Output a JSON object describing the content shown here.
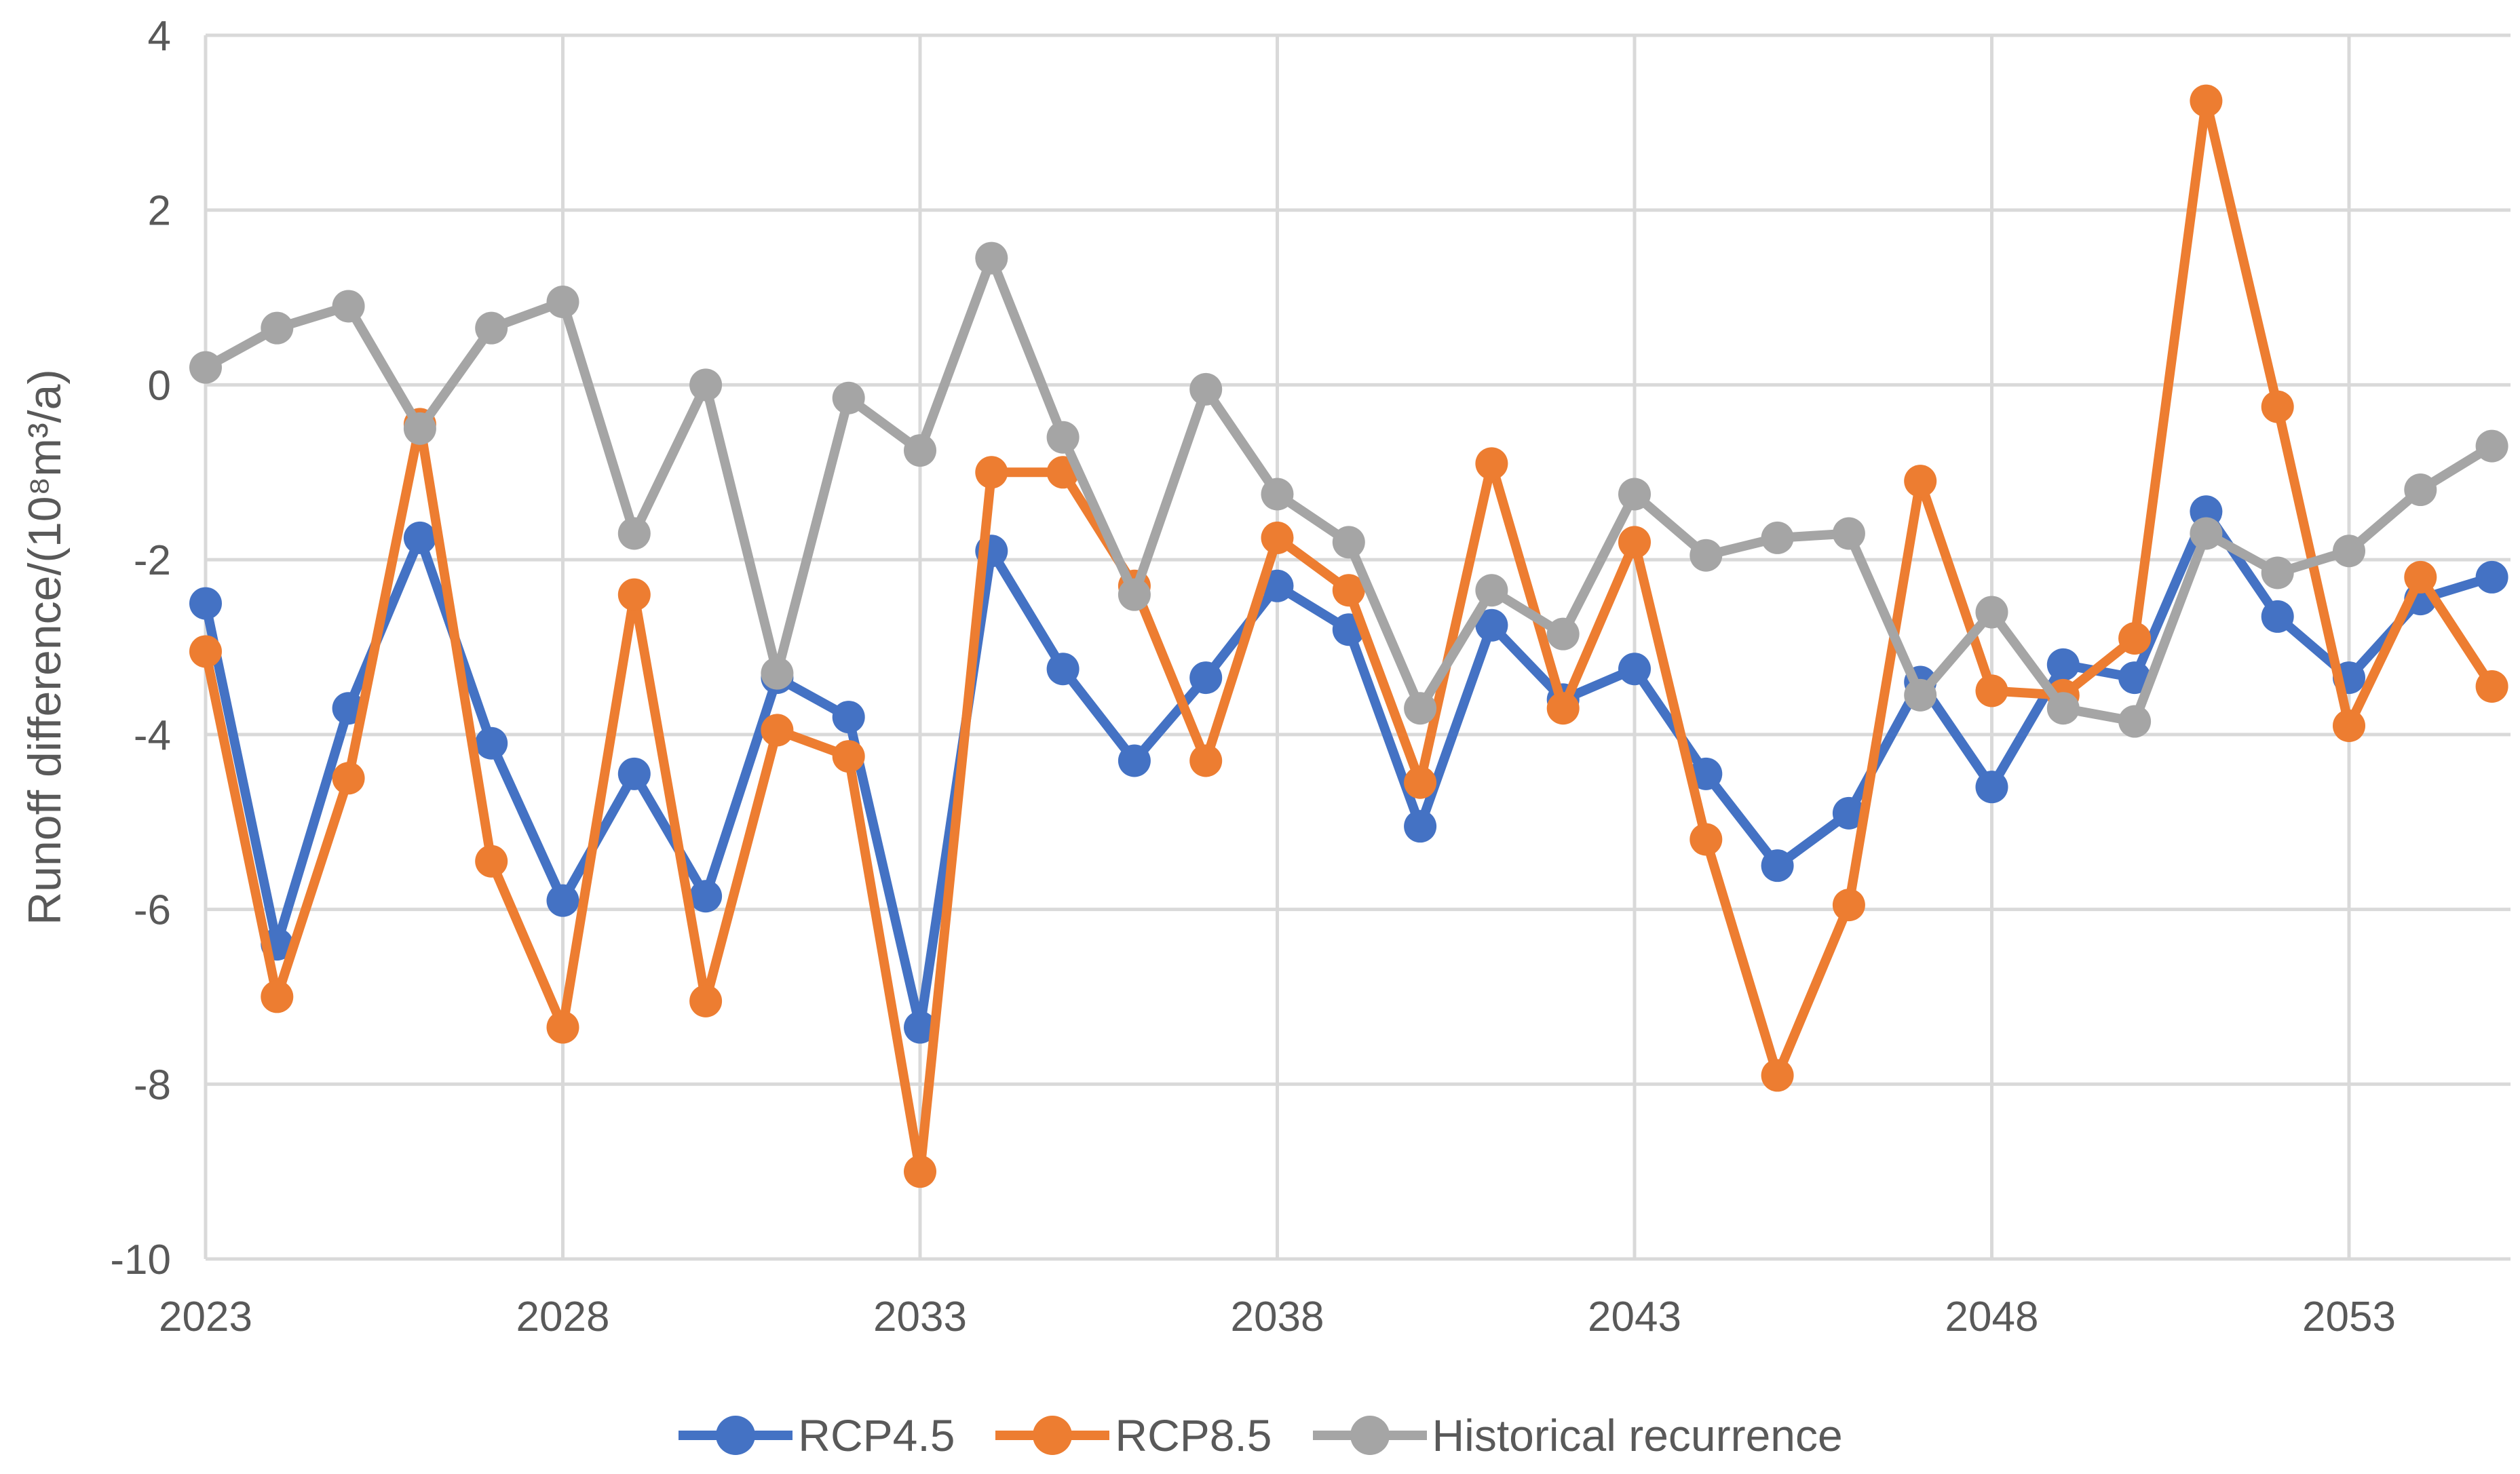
{
  "chart_data": {
    "type": "line",
    "title": "",
    "xlabel": "",
    "ylabel": "Runoff difference/(10⁸m³/a)",
    "x": [
      2023,
      2024,
      2025,
      2026,
      2027,
      2028,
      2029,
      2030,
      2031,
      2032,
      2033,
      2034,
      2035,
      2036,
      2037,
      2038,
      2039,
      2040,
      2041,
      2042,
      2043,
      2044,
      2045,
      2046,
      2047,
      2048,
      2049,
      2050,
      2051,
      2052,
      2053,
      2054,
      2055
    ],
    "x_tick_labels": [
      "2023",
      "2028",
      "2033",
      "2038",
      "2043",
      "2048",
      "2053"
    ],
    "x_tick_years": [
      2023,
      2028,
      2033,
      2038,
      2043,
      2048,
      2053
    ],
    "y_ticks": [
      4,
      2,
      0,
      -2,
      -4,
      -6,
      -8,
      -10
    ],
    "y_tick_labels": [
      "4",
      "2",
      "0",
      "-2",
      "-4",
      "-6",
      "-8",
      "-10"
    ],
    "ylim": [
      -10,
      4
    ],
    "grid": true,
    "legend_position": "bottom",
    "series": [
      {
        "name": "RCP4.5",
        "color": "#4472C4",
        "values": [
          -2.5,
          -6.4,
          -3.7,
          -1.75,
          -4.1,
          -5.9,
          -4.45,
          -5.85,
          -3.35,
          -3.8,
          -7.35,
          -1.9,
          -3.25,
          -4.3,
          -3.35,
          -2.3,
          -2.8,
          -5.05,
          -2.75,
          -3.6,
          -3.25,
          -4.45,
          -5.5,
          -4.9,
          -3.4,
          -4.6,
          -3.2,
          -3.35,
          -1.45,
          -2.65,
          -3.35,
          -2.45,
          -2.2
        ]
      },
      {
        "name": "RCP8.5",
        "color": "#ED7D31",
        "values": [
          -3.05,
          -7.0,
          -4.5,
          -0.45,
          -5.45,
          -7.35,
          -2.4,
          -7.05,
          -3.95,
          -4.25,
          -9.0,
          -1.0,
          -1.0,
          -2.3,
          -4.3,
          -1.75,
          -2.35,
          -4.55,
          -0.9,
          -3.7,
          -1.8,
          -5.2,
          -7.9,
          -5.95,
          -1.1,
          -3.5,
          -3.55,
          -2.9,
          3.25,
          -0.25,
          -3.9,
          -2.2,
          -3.45
        ]
      },
      {
        "name": "Historical recurrence",
        "color": "#A5A5A5",
        "values": [
          0.2,
          0.65,
          0.9,
          -0.5,
          0.65,
          0.95,
          -1.7,
          0.0,
          -3.3,
          -0.15,
          -0.75,
          1.45,
          -0.6,
          -2.4,
          -0.05,
          -1.25,
          -1.8,
          -3.7,
          -2.35,
          -2.85,
          -1.25,
          -1.95,
          -1.75,
          -1.7,
          -3.55,
          -2.6,
          -3.7,
          -3.85,
          -1.7,
          -2.15,
          -1.9,
          -1.2,
          -0.7
        ]
      }
    ]
  },
  "colors": {
    "gridline": "#D9D9D9",
    "axis_text": "#595959"
  }
}
